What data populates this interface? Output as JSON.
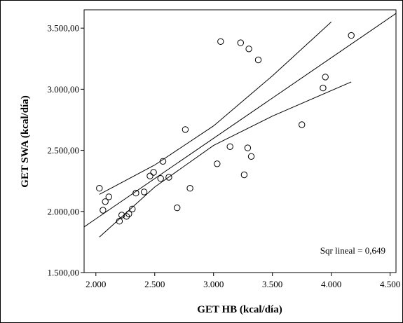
{
  "chart_data": {
    "type": "scatter",
    "xlabel": "GET HB (kcal/día)",
    "ylabel": "GET SWA (kcal/día)",
    "xlim": [
      1900,
      4550
    ],
    "ylim": [
      1500,
      3650
    ],
    "xticks": [
      2000,
      2500,
      3000,
      3500,
      4000,
      4500
    ],
    "xtick_labels": [
      "2.000",
      "2.500",
      "3.000",
      "3.500",
      "4.000",
      "4.500"
    ],
    "yticks": [
      1500,
      2000,
      2500,
      3000,
      3500
    ],
    "ytick_labels": [
      "1.500,00",
      "2.000,00",
      "2.500,00",
      "3.000,00",
      "3.500,00"
    ],
    "grid": false,
    "annotation": "Sqr lineal = 0,649",
    "annotation_position": "bottom-right",
    "points": [
      {
        "x": 2030,
        "y": 2190
      },
      {
        "x": 2060,
        "y": 2010
      },
      {
        "x": 2080,
        "y": 2080
      },
      {
        "x": 2110,
        "y": 2120
      },
      {
        "x": 2200,
        "y": 1920
      },
      {
        "x": 2220,
        "y": 1970
      },
      {
        "x": 2260,
        "y": 1960
      },
      {
        "x": 2280,
        "y": 1980
      },
      {
        "x": 2310,
        "y": 2020
      },
      {
        "x": 2340,
        "y": 2150
      },
      {
        "x": 2410,
        "y": 2160
      },
      {
        "x": 2460,
        "y": 2290
      },
      {
        "x": 2490,
        "y": 2320
      },
      {
        "x": 2550,
        "y": 2270
      },
      {
        "x": 2570,
        "y": 2410
      },
      {
        "x": 2620,
        "y": 2280
      },
      {
        "x": 2690,
        "y": 2030
      },
      {
        "x": 2760,
        "y": 2670
      },
      {
        "x": 2800,
        "y": 2190
      },
      {
        "x": 3030,
        "y": 2390
      },
      {
        "x": 3060,
        "y": 3390
      },
      {
        "x": 3140,
        "y": 2530
      },
      {
        "x": 3230,
        "y": 3380
      },
      {
        "x": 3260,
        "y": 2300
      },
      {
        "x": 3290,
        "y": 2520
      },
      {
        "x": 3300,
        "y": 3330
      },
      {
        "x": 3320,
        "y": 2450
      },
      {
        "x": 3380,
        "y": 3240
      },
      {
        "x": 3750,
        "y": 2710
      },
      {
        "x": 3930,
        "y": 3010
      },
      {
        "x": 3950,
        "y": 3100
      },
      {
        "x": 4170,
        "y": 3440
      }
    ],
    "fit_line": [
      [
        1880,
        1860
      ],
      [
        4550,
        3620
      ]
    ],
    "ci_upper": [
      [
        2030,
        2140
      ],
      [
        2500,
        2380
      ],
      [
        3000,
        2700
      ],
      [
        3500,
        3110
      ],
      [
        4000,
        3550
      ]
    ],
    "ci_lower": [
      [
        2030,
        1790
      ],
      [
        2500,
        2200
      ],
      [
        3000,
        2540
      ],
      [
        3500,
        2780
      ],
      [
        4170,
        3060
      ]
    ]
  }
}
